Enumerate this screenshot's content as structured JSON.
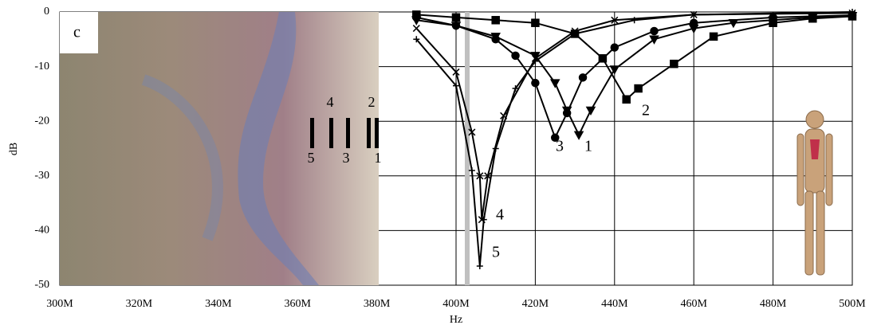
{
  "chart_data": {
    "type": "line",
    "xlabel": "Hz",
    "ylabel": "dB",
    "panel_label": "c",
    "image_labels": [
      "4",
      "2",
      "5",
      "3",
      "1"
    ],
    "xlim": [
      300,
      500
    ],
    "ylim": [
      -50,
      0
    ],
    "xticks": [
      {
        "value": 300,
        "label": "300M"
      },
      {
        "value": 320,
        "label": "320M"
      },
      {
        "value": 340,
        "label": "340M"
      },
      {
        "value": 360,
        "label": "360M"
      },
      {
        "value": 380,
        "label": "380M"
      },
      {
        "value": 400,
        "label": "400M"
      },
      {
        "value": 420,
        "label": "420M"
      },
      {
        "value": 440,
        "label": "440M"
      },
      {
        "value": 460,
        "label": "460M"
      },
      {
        "value": 480,
        "label": "480M"
      },
      {
        "value": 500,
        "label": "500M"
      }
    ],
    "yticks": [
      -50,
      -40,
      -30,
      -20,
      -10,
      0
    ],
    "grid": true,
    "series": [
      {
        "name": "1",
        "color": "#000000",
        "marker": "triangle-down",
        "x": [
          390,
          400,
          410,
          420,
          425,
          428,
          431,
          434,
          440,
          450,
          460,
          470,
          480,
          490,
          500
        ],
        "values": [
          -1.5,
          -2.5,
          -4.5,
          -8,
          -13,
          -18,
          -22.5,
          -18,
          -10.5,
          -5,
          -3,
          -2,
          -1.5,
          -1,
          -0.7
        ]
      },
      {
        "name": "2",
        "color": "#000000",
        "marker": "square",
        "x": [
          390,
          400,
          410,
          420,
          430,
          437,
          443,
          446,
          455,
          465,
          480,
          490,
          500
        ],
        "values": [
          -0.5,
          -1,
          -1.5,
          -2,
          -4,
          -8.5,
          -16,
          -14,
          -9.5,
          -4.5,
          -2,
          -1.2,
          -0.8
        ]
      },
      {
        "name": "3",
        "color": "#000000",
        "marker": "circle",
        "x": [
          390,
          400,
          410,
          415,
          420,
          425,
          428,
          432,
          440,
          450,
          460,
          480,
          500
        ],
        "values": [
          -1,
          -2.5,
          -5,
          -8,
          -13,
          -23,
          -18.5,
          -12,
          -6.5,
          -3.5,
          -2,
          -1,
          -0.6
        ]
      },
      {
        "name": "4",
        "color": "#000000",
        "marker": "x",
        "x": [
          390,
          400,
          404,
          406,
          406.5,
          408,
          412,
          420,
          430,
          440,
          460,
          500
        ],
        "values": [
          -3,
          -11,
          -22,
          -30,
          -38,
          -30,
          -19,
          -8.5,
          -3.5,
          -1.5,
          -0.5,
          -0.2
        ]
      },
      {
        "name": "5",
        "color": "#000000",
        "marker": "plus",
        "x": [
          390,
          400,
          404,
          406,
          407,
          410,
          415,
          420,
          430,
          445,
          460,
          500
        ],
        "values": [
          -5,
          -13.5,
          -29,
          -46.5,
          -38,
          -25,
          -14,
          -9,
          -4,
          -1.5,
          -0.5,
          0
        ]
      }
    ]
  }
}
